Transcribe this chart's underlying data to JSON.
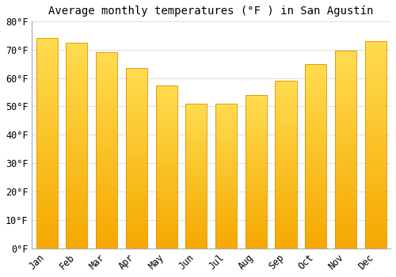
{
  "title": "Average monthly temperatures (°F ) in San Agustín",
  "months": [
    "Jan",
    "Feb",
    "Mar",
    "Apr",
    "May",
    "Jun",
    "Jul",
    "Aug",
    "Sep",
    "Oct",
    "Nov",
    "Dec"
  ],
  "values": [
    74,
    72.5,
    69,
    63.5,
    57.5,
    51,
    51,
    54,
    59,
    65,
    69.5,
    73
  ],
  "bar_color_bottom": "#F5A800",
  "bar_color_top": "#FFD966",
  "bar_edge_color": "#E09000",
  "ylim": [
    0,
    80
  ],
  "yticks": [
    0,
    10,
    20,
    30,
    40,
    50,
    60,
    70,
    80
  ],
  "ytick_labels": [
    "0°F",
    "10°F",
    "20°F",
    "30°F",
    "40°F",
    "50°F",
    "60°F",
    "70°F",
    "80°F"
  ],
  "background_color": "#FFFFFF",
  "grid_color": "#DDDDDD",
  "title_fontsize": 10,
  "tick_fontsize": 8.5
}
